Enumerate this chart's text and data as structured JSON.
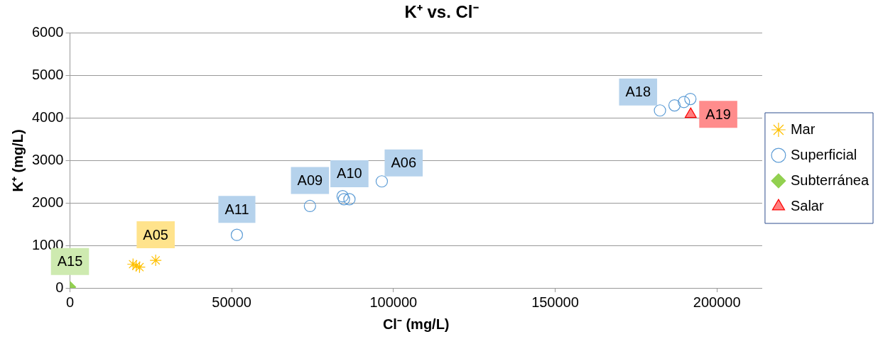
{
  "chart_data": {
    "type": "scatter",
    "title": "K⁺ vs. Cl⁻",
    "xlabel": "Cl⁻ (mg/L)",
    "ylabel": "K⁺ (mg/L)",
    "xlim": [
      0,
      214000
    ],
    "xticks": [
      0,
      50000,
      100000,
      150000,
      200000
    ],
    "ylim": [
      0,
      6000
    ],
    "yticks": [
      0,
      1000,
      2000,
      3000,
      4000,
      5000,
      6000
    ],
    "grid": "y",
    "legend": "right",
    "series": [
      {
        "name": "Mar",
        "color": "#ffc000",
        "marker": "cross",
        "x": [
          19500,
          20500,
          21500,
          26500
        ],
        "values": [
          560,
          520,
          490,
          650
        ],
        "value_labels": [
          null,
          null,
          null,
          "A05"
        ]
      },
      {
        "name": "Superficial",
        "color": "#5b9bd5",
        "marker": "circle",
        "x": [
          51600,
          74200,
          84300,
          84700,
          86400,
          96400,
          182400,
          186900,
          189800,
          191800
        ],
        "values": [
          1250,
          1930,
          2160,
          2090,
          2090,
          2510,
          4180,
          4300,
          4380,
          4450
        ],
        "value_labels": [
          "A11",
          "A09",
          null,
          null,
          "A10",
          "A06",
          "A18",
          null,
          null,
          null
        ]
      },
      {
        "name": "Subterránea",
        "color": "#92d050",
        "marker": "diamond",
        "x": [
          0
        ],
        "values": [
          20
        ],
        "value_labels": [
          "A15"
        ]
      },
      {
        "name": "Salar",
        "color": "#ff0000",
        "marker": "triangle",
        "x": [
          191900
        ],
        "values": [
          4090
        ],
        "value_labels": [
          "A19"
        ]
      }
    ]
  }
}
